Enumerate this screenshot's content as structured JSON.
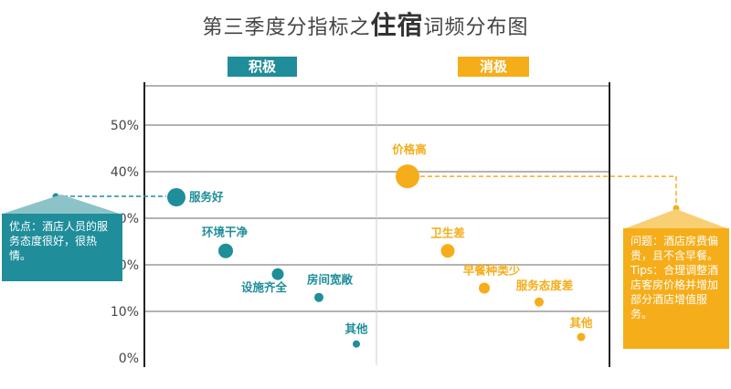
{
  "title": {
    "prefix": "第三季度分指标之",
    "emphasis": "住宿",
    "suffix": "词频分布图"
  },
  "headers": {
    "positive": "积极",
    "negative": "消极"
  },
  "colors": {
    "positive": "#1f8d9a",
    "negative": "#f5ad1a"
  },
  "callouts": {
    "left": "优点：酒店人员的服务态度很好，很热情。",
    "right": "问题：酒店房费偏贵，且不含早餐。Tips：合理调整酒店客房价格并增加部分酒店增值服务。"
  },
  "chart_data": {
    "type": "scatter",
    "yticks": [
      "0%",
      "10%",
      "20%",
      "30%",
      "40%",
      "50%"
    ],
    "ylim": [
      0,
      0.55
    ],
    "grid": true,
    "series": [
      {
        "name": "积极",
        "points": [
          {
            "label": "服务好",
            "y": 0.345
          },
          {
            "label": "环境干净",
            "y": 0.23
          },
          {
            "label": "设施齐全",
            "y": 0.18
          },
          {
            "label": "房间宽敞",
            "y": 0.13
          },
          {
            "label": "其他",
            "y": 0.03
          }
        ]
      },
      {
        "name": "消极",
        "points": [
          {
            "label": "价格高",
            "y": 0.39
          },
          {
            "label": "卫生差",
            "y": 0.23
          },
          {
            "label": "早餐种类少",
            "y": 0.15
          },
          {
            "label": "服务态度差",
            "y": 0.12
          },
          {
            "label": "其他",
            "y": 0.045
          }
        ]
      }
    ]
  }
}
